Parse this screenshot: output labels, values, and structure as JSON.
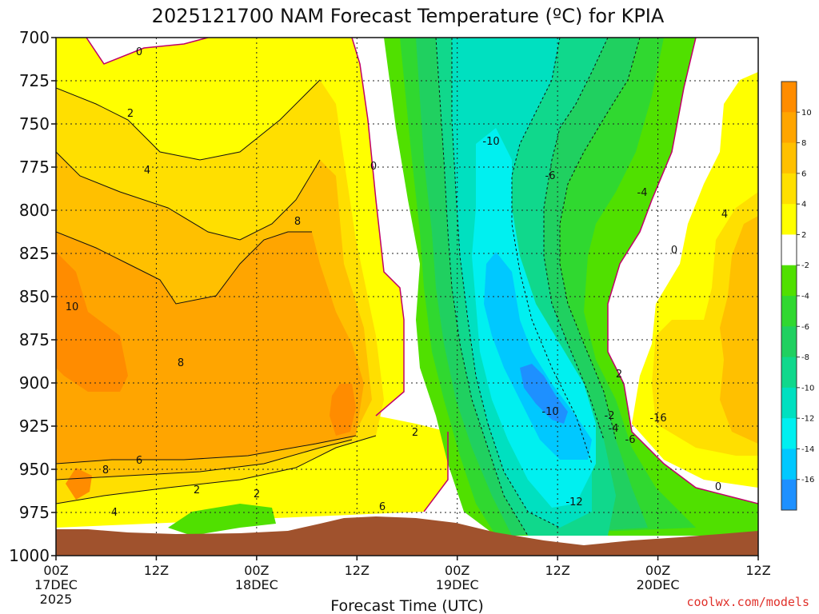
{
  "chart_data": {
    "type": "heatmap",
    "title": "2025121700 NAM Forecast Temperature (ºC) for KPIA",
    "xlabel": "Forecast Time (UTC)",
    "ylabel": "",
    "y_ticks": [
      "700",
      "725",
      "750",
      "775",
      "800",
      "825",
      "850",
      "875",
      "900",
      "925",
      "950",
      "975",
      "1000"
    ],
    "x_ticks": [
      {
        "time": "00Z",
        "date": "17DEC",
        "year": "2025"
      },
      {
        "time": "12Z",
        "date": "",
        "year": ""
      },
      {
        "time": "00Z",
        "date": "18DEC",
        "year": ""
      },
      {
        "time": "12Z",
        "date": "",
        "year": ""
      },
      {
        "time": "00Z",
        "date": "19DEC",
        "year": ""
      },
      {
        "time": "12Z",
        "date": "",
        "year": ""
      },
      {
        "time": "00Z",
        "date": "20DEC",
        "year": ""
      },
      {
        "time": "12Z",
        "date": "",
        "year": ""
      }
    ],
    "colorbar": {
      "labels": [
        "10",
        "8",
        "6",
        "4",
        "2",
        "-2",
        "-4",
        "-6",
        "-8",
        "-10",
        "-12",
        "-14",
        "-16"
      ],
      "colors": [
        "#ff8c00",
        "#ffa500",
        "#ffc000",
        "#ffdf00",
        "#ffff00",
        "#ffffff",
        "#50e000",
        "#30d830",
        "#20d060",
        "#10d88c",
        "#00e0c0",
        "#00f0f0",
        "#00c8ff",
        "#1e90ff"
      ]
    },
    "contour_labels": [
      "0",
      "2",
      "4",
      "8",
      "10",
      "8",
      "0",
      "-10",
      "-6",
      "-4",
      "4",
      "0",
      "2",
      "-2",
      "-4",
      "-6",
      "-10",
      "-16",
      "2",
      "8",
      "6",
      "4",
      "2",
      "6",
      "-12",
      "0",
      "2"
    ],
    "grid": true,
    "legend": "right"
  },
  "credit": "coolwx.com/models"
}
